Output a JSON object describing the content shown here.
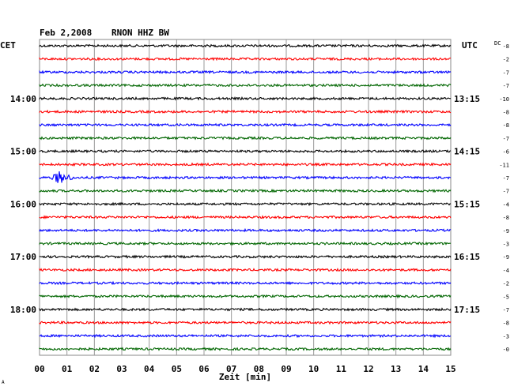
{
  "chart_data": {
    "type": "line",
    "title": "Feb 2,2008",
    "station": "RNON HHZ BW",
    "left_label": "CET",
    "right_label": "UTC",
    "dc_label": "DC",
    "xlabel": "Zeit [min]",
    "xlim": [
      0,
      15
    ],
    "x_ticks": [
      "00",
      "01",
      "02",
      "03",
      "04",
      "05",
      "06",
      "07",
      "08",
      "09",
      "10",
      "11",
      "12",
      "13",
      "14",
      "15"
    ],
    "trace_colors": [
      "#000000",
      "#ff0000",
      "#0000ff",
      "#006600"
    ],
    "left_hour_labels": [
      {
        "trace": 4,
        "label": "14:00"
      },
      {
        "trace": 8,
        "label": "15:00"
      },
      {
        "trace": 12,
        "label": "16:00"
      },
      {
        "trace": 16,
        "label": "17:00"
      },
      {
        "trace": 20,
        "label": "18:00"
      }
    ],
    "right_hour_labels": [
      {
        "trace": 4,
        "label": "13:15"
      },
      {
        "trace": 8,
        "label": "14:15"
      },
      {
        "trace": 12,
        "label": "15:15"
      },
      {
        "trace": 16,
        "label": "16:15"
      },
      {
        "trace": 20,
        "label": "17:15"
      }
    ],
    "dc_offsets": [
      "-8",
      "-2",
      "-7",
      "-7",
      "-10",
      "-8",
      "-8",
      "-7",
      "-6",
      "-11",
      "-7",
      "-7",
      "-4",
      "-8",
      "-9",
      "-3",
      "-9",
      "-4",
      "-2",
      "-5",
      "-7",
      "-8",
      "-3",
      "-0"
    ],
    "events": [
      {
        "trace": 10,
        "start_min": 0.3,
        "end_min": 1.5,
        "peak_min": 0.7,
        "peak_amplitude": 9
      }
    ],
    "footnote": "A",
    "grid": true
  }
}
